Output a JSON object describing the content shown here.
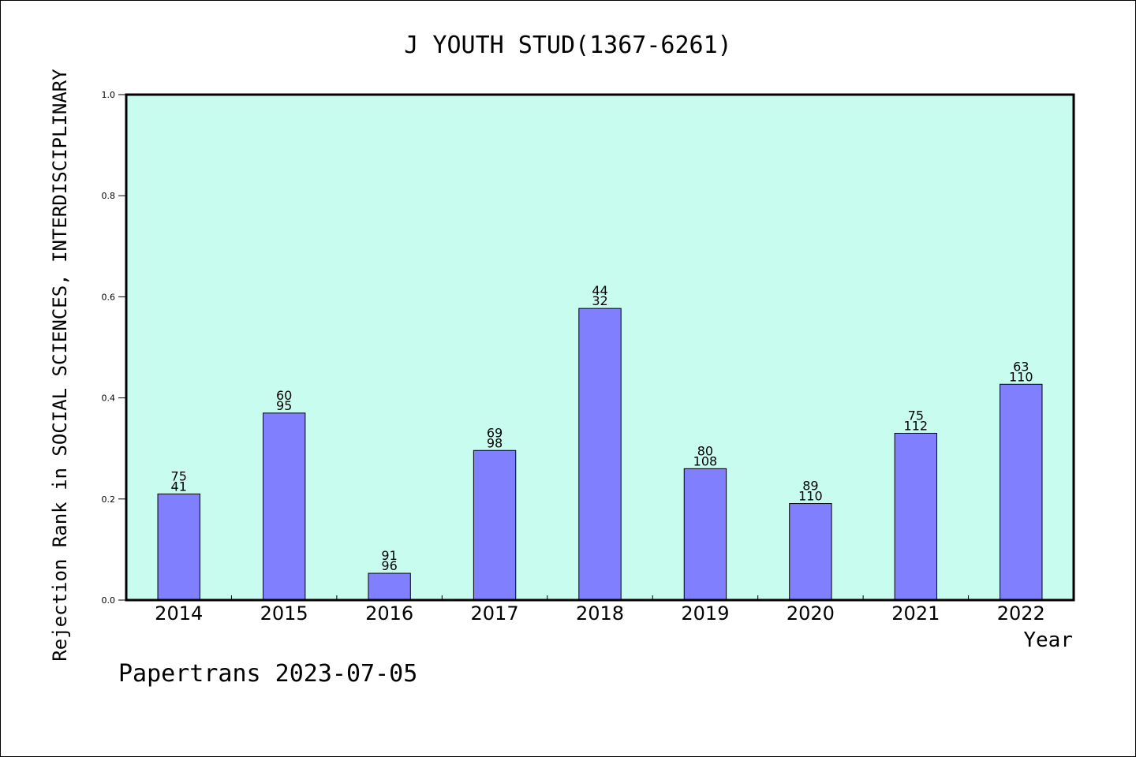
{
  "footer": {
    "text": "Papertrans 2023-07-05"
  },
  "chart_data": {
    "type": "bar",
    "title": "J YOUTH STUD(1367-6261)",
    "xlabel": "Year",
    "ylabel": "Rejection Rank in SOCIAL SCIENCES, INTERDISCIPLINARY",
    "ylim": [
      0,
      1.0
    ],
    "yticks": [
      0.0,
      0.2,
      0.4,
      0.6,
      0.8,
      1.0
    ],
    "categories": [
      "2014",
      "2015",
      "2016",
      "2017",
      "2018",
      "2019",
      "2020",
      "2021",
      "2022"
    ],
    "values": [
      0.21,
      0.37,
      0.053,
      0.296,
      0.577,
      0.26,
      0.191,
      0.33,
      0.427
    ],
    "label_top": [
      "75",
      "60",
      "91",
      "69",
      "44",
      "80",
      "89",
      "75",
      "63"
    ],
    "label_bottom": [
      "41",
      "95",
      "96",
      "98",
      "32",
      "108",
      "110",
      "112",
      "110"
    ],
    "grid": false,
    "colors": {
      "plot_bg": "#c8fcee",
      "bar": "#8080ff",
      "axis": "#000000"
    }
  }
}
